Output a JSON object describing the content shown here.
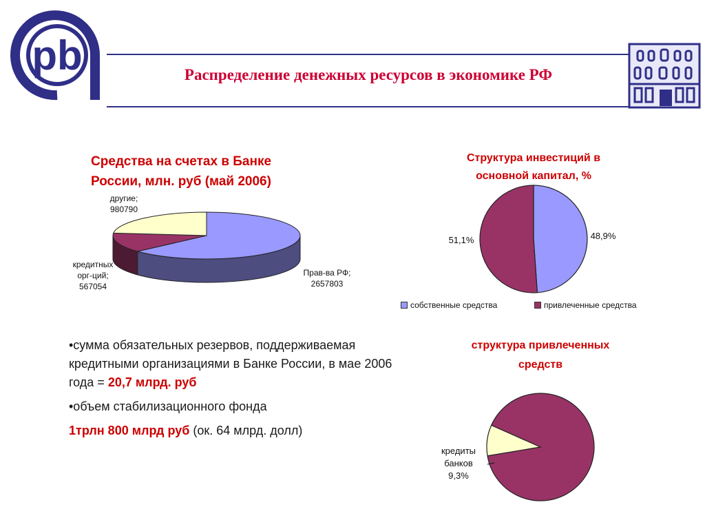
{
  "header": {
    "title": "Распределение денежных ресурсов в экономике РФ"
  },
  "colors": {
    "accent": "#2f2f88",
    "title_red": "#cc0033",
    "slice_blue": "#9999ff",
    "slice_maroon": "#993366",
    "slice_yellow": "#ffffcc"
  },
  "chart_data": [
    {
      "type": "pie",
      "title": "Средства на счетах в Банке России, млн. руб (май 2006)",
      "slices": [
        {
          "name": "Прав-ва РФ",
          "value": 2657803,
          "label_name": "Прав-ва РФ;",
          "label_value": "2657803",
          "color": "#9999ff"
        },
        {
          "name": "кредитных орг-ций",
          "value": 567054,
          "label_name_1": "кредитных",
          "label_name_2": "орг-ций;",
          "label_value": "567054",
          "color": "#993366"
        },
        {
          "name": "другие",
          "value": 980790,
          "label_name": "другие;",
          "label_value": "980790",
          "color": "#ffffcc"
        }
      ]
    },
    {
      "type": "pie",
      "title": "Структура инвестиций в основной капитал, %",
      "title_line1": "Структура инвестиций в",
      "title_line2": "основной капитал, %",
      "slices": [
        {
          "name": "собственные средства",
          "value": 48.9,
          "label": "48,9%",
          "color": "#9999ff"
        },
        {
          "name": "привлеченные средства",
          "value": 51.1,
          "label": "51,1%",
          "color": "#993366"
        }
      ],
      "legend": "bottom"
    },
    {
      "type": "pie",
      "title": "структура привлеченных средств",
      "title_line1": "структура привлеченных",
      "title_line2": "средств",
      "slices": [
        {
          "name": "кредиты банков",
          "value": 9.3,
          "label_1": "кредиты",
          "label_2": "банков",
          "label_value": "9,3%",
          "color": "#ffffcc"
        },
        {
          "name": "",
          "value": 90.7,
          "color": "#993366"
        }
      ]
    }
  ],
  "text": {
    "bullet1_prefix": "•сумма обязательных резервов, поддерживаемая кредитными организациями в Банке России, в мае 2006 года = ",
    "bullet1_value": "20,7 млрд. руб",
    "bullet2": "•объем стабилизационного фонда",
    "bullet3_value": "1трлн 800 млрд руб",
    "bullet3_suffix": " (ок. 64 млрд. долл)"
  }
}
